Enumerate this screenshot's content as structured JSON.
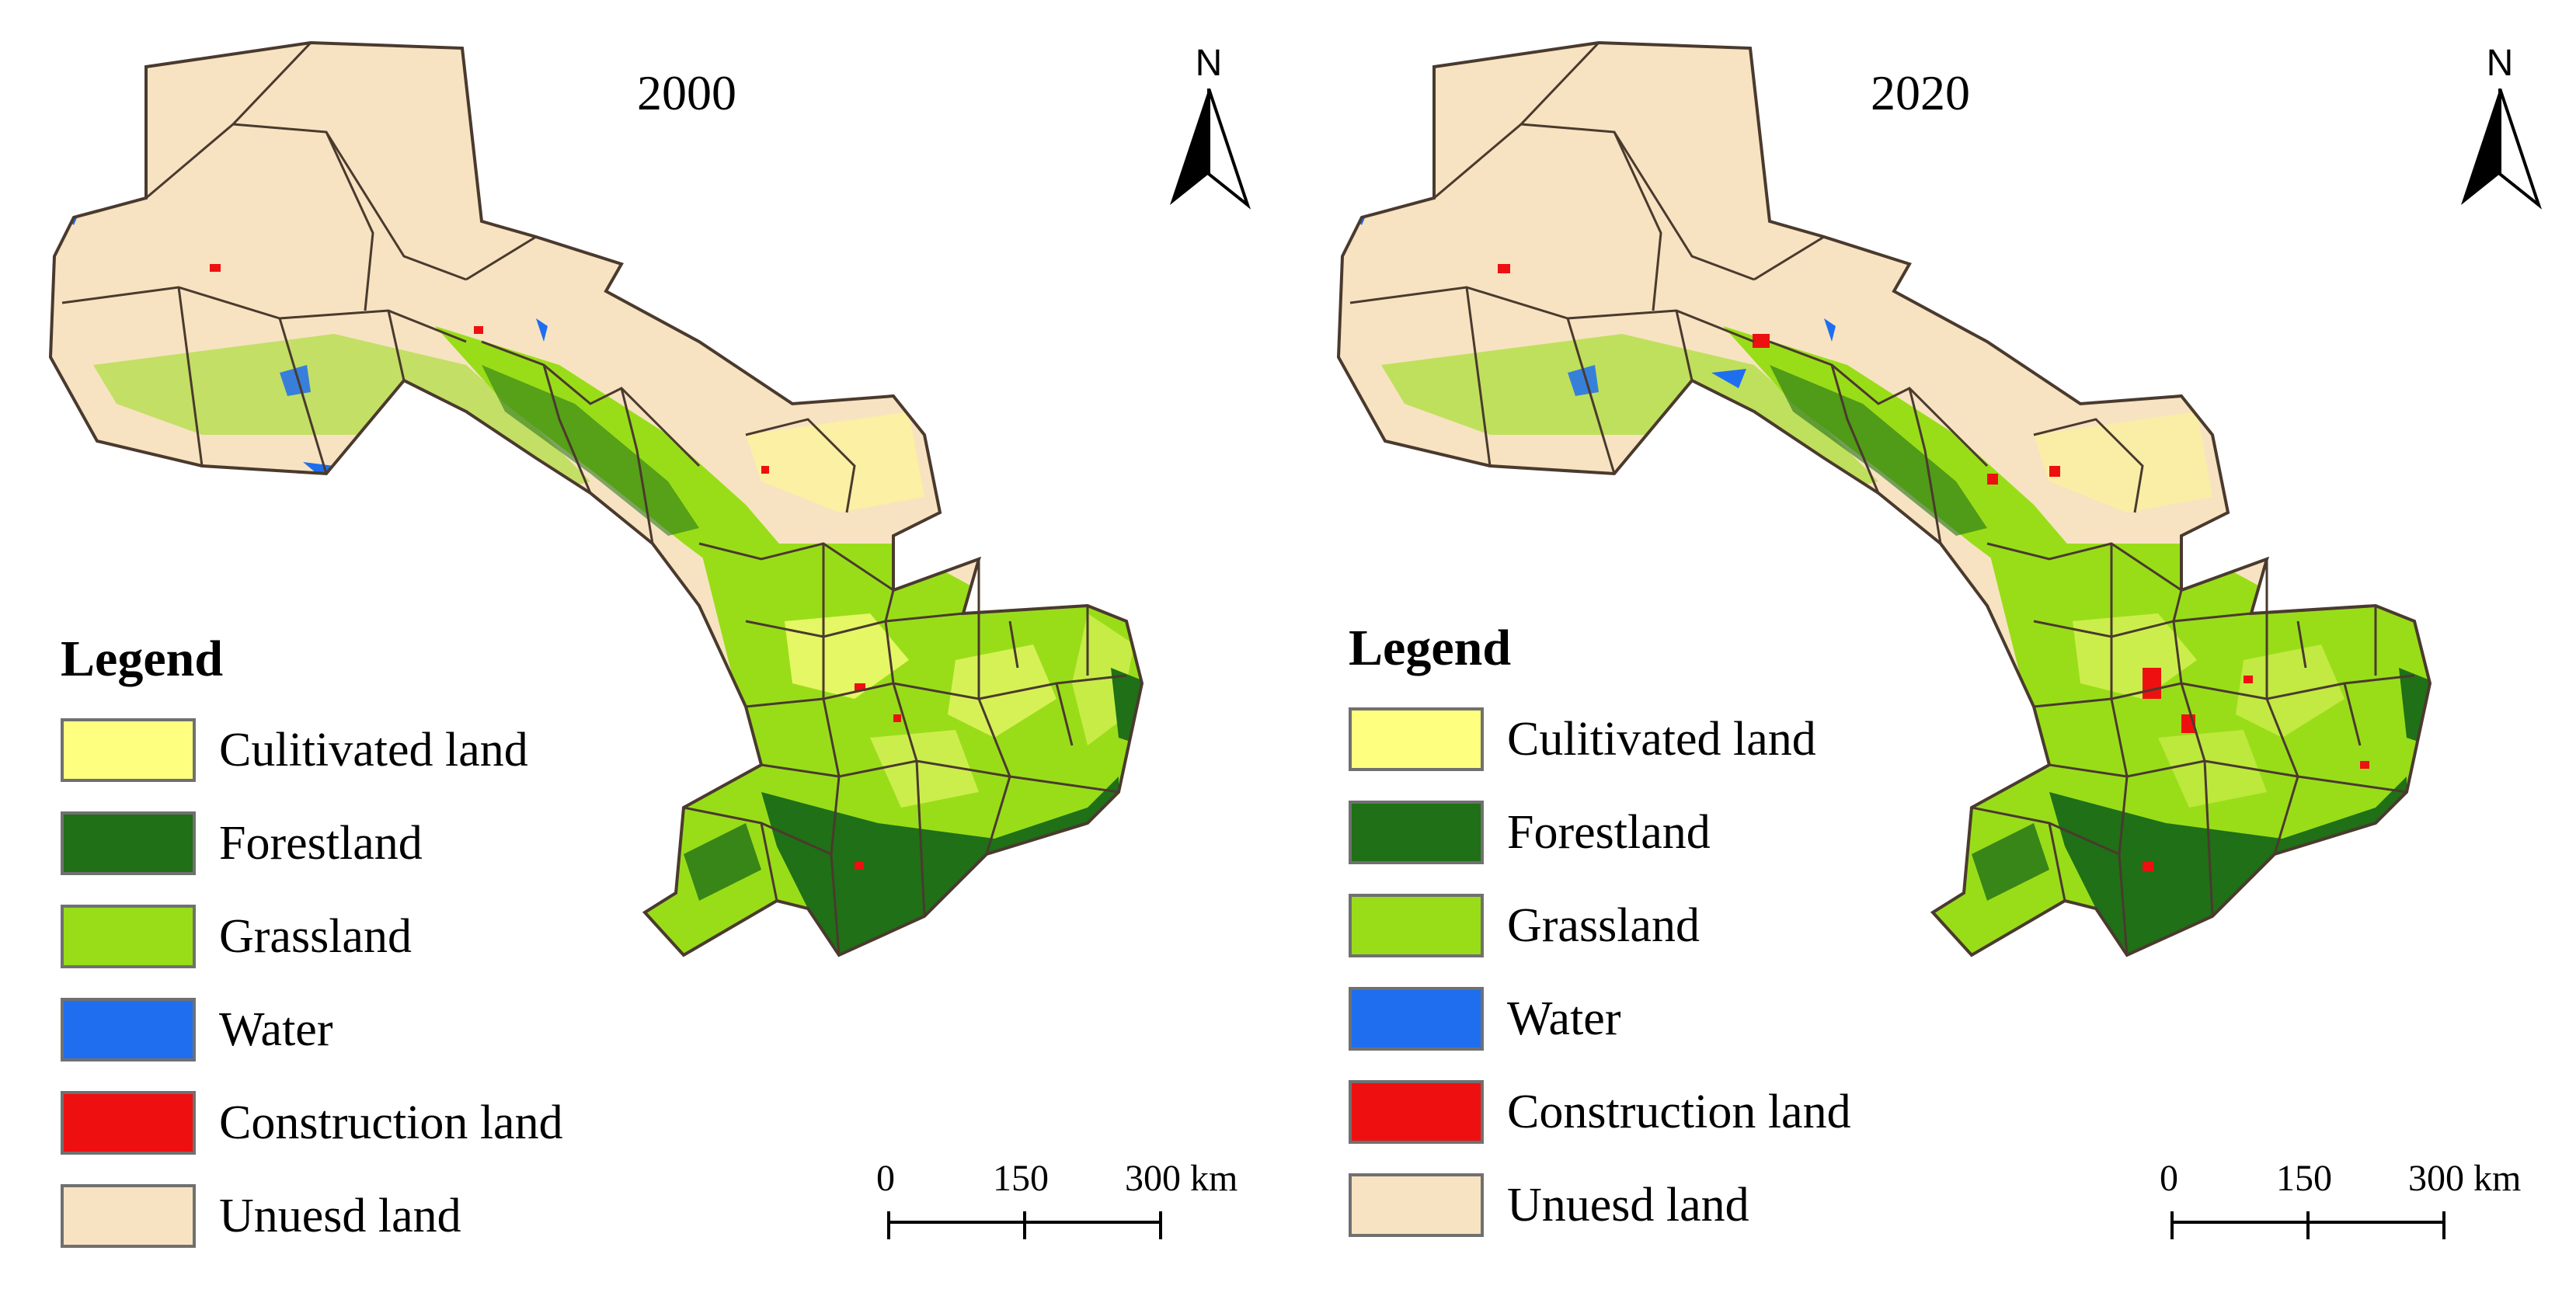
{
  "figure": {
    "panels": [
      {
        "year": "2000"
      },
      {
        "year": "2020"
      }
    ],
    "north_arrow": {
      "letter": "N"
    },
    "legend": {
      "title": "Legend",
      "items": [
        {
          "label": "Culitivated land",
          "color": "#ffff7f"
        },
        {
          "label": "Forestland",
          "color": "#1f7016"
        },
        {
          "label": "Grassland",
          "color": "#99dd19"
        },
        {
          "label": "Water",
          "color": "#1f6ef0"
        },
        {
          "label": "Construction land",
          "color": "#ee1010"
        },
        {
          "label": "Unuesd land",
          "color": "#f7e3c1"
        }
      ]
    },
    "scale_bar": {
      "labels": [
        "0",
        "150",
        "300 km"
      ]
    },
    "boundary_color": "#4a3a2e"
  }
}
